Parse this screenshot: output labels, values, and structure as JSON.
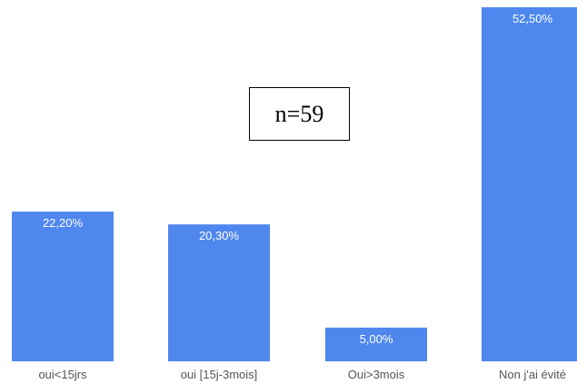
{
  "chart_data": {
    "type": "bar",
    "categories": [
      "oui<15jrs",
      "oui [15j-3mois]",
      "Oui>3mois",
      "Non j'ai évité"
    ],
    "values": [
      22.2,
      20.3,
      5.0,
      52.5
    ],
    "value_labels": [
      "22,20%",
      "20,30%",
      "5,00%",
      "52,50%"
    ],
    "ylim": [
      0,
      52.5
    ],
    "grid": false,
    "annotation": "n=59",
    "bar_color": "#4f87ef"
  }
}
